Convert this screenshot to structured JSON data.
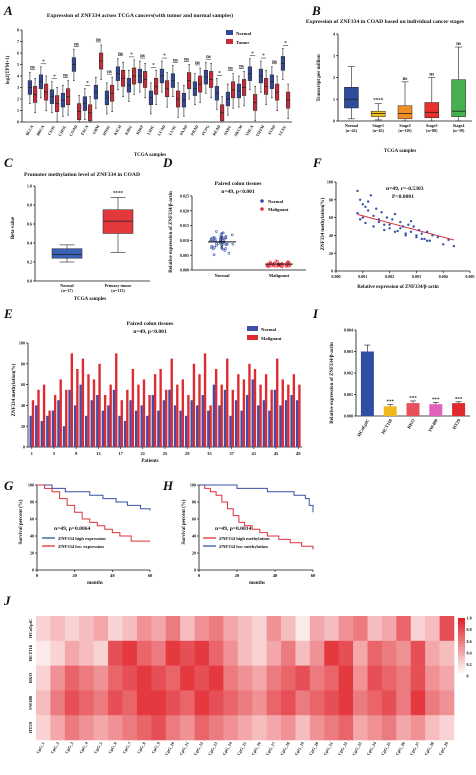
{
  "panels": {
    "A": {
      "letter": "A",
      "chart_data": {
        "type": "box",
        "title": "Expression of ZNF334 across TCGA cancers(with tumor and normal samples)",
        "xlabel": "TCGA samples",
        "ylabel": "log2(TPM+1)",
        "ylim": [
          0,
          8
        ],
        "yticks": [
          "0",
          "1",
          "2",
          "3",
          "4",
          "5",
          "6",
          "7",
          "8"
        ],
        "legend": [
          "Normal",
          "Tumor"
        ],
        "colors": {
          "normal": "#33489a",
          "tumor": "#c62d3a"
        },
        "categories": [
          "BLCA",
          "BRCA",
          "CESC",
          "CHOL",
          "COAD",
          "ESCA",
          "GBM",
          "HNSC",
          "KICH",
          "KIRC",
          "KIRP",
          "LIHC",
          "LUAD",
          "LUSC",
          "PAAD",
          "PRAD",
          "PCPG",
          "READ",
          "SARC",
          "SKCM",
          "THCA",
          "THYM",
          "STAD",
          "UCEC"
        ],
        "significance": [
          "ns",
          "*",
          "*",
          "ns",
          "ns",
          "*",
          "ns",
          "ns",
          "ns",
          "*",
          "ns",
          "*",
          "*",
          "ns",
          "ns",
          "ns",
          "ns",
          "*",
          "ns",
          "ns",
          "*",
          "*",
          "ns",
          "*"
        ],
        "series": [
          {
            "name": "Normal",
            "median": [
              3.0,
              3.5,
              2.2,
              1.9,
              5.0,
              1.6,
              2.6,
              2.1,
              4.2,
              3.2,
              4.0,
              2.1,
              4.0,
              3.6,
              1.9,
              2.9,
              3.9,
              2.5,
              2.0,
              2.7,
              4.2,
              4.0,
              3.5,
              5.1
            ]
          },
          {
            "name": "Tumor",
            "median": [
              2.4,
              2.6,
              1.6,
              2.2,
              0.9,
              0.8,
              5.3,
              2.5,
              3.8,
              4.0,
              3.7,
              3.1,
              2.9,
              2.0,
              3.6,
              3.3,
              3.7,
              0.8,
              2.8,
              3.0,
              1.7,
              3.1,
              2.6,
              1.9
            ]
          }
        ]
      }
    },
    "B": {
      "letter": "B",
      "chart_data": {
        "type": "box",
        "title": "Expression of ZNF334 in COAD based on individual cancer stages",
        "xlabel": "TCGA samples",
        "ylabel": "Transcript per million",
        "ylim": [
          0,
          4
        ],
        "yticks": [
          "0",
          "1",
          "2",
          "3",
          "4"
        ],
        "categories": [
          "Normal",
          "Stage1",
          "Stage2",
          "Stage3",
          "Stage4"
        ],
        "n_labels": [
          "(n=41)",
          "(n=45)",
          "(n=110)",
          "(n=80)",
          "(n=39)"
        ],
        "significance": [
          "",
          "****",
          "ns",
          "ns",
          "ns"
        ],
        "colors": [
          "#2e4b9c",
          "#f3bd20",
          "#f28c26",
          "#e8312c",
          "#44b14c"
        ],
        "median": [
          1.0,
          0.35,
          0.35,
          0.4,
          0.45
        ],
        "q1": [
          0.6,
          0.2,
          0.1,
          0.15,
          0.2
        ],
        "q3": [
          1.55,
          0.45,
          0.7,
          0.85,
          1.9
        ],
        "whisker_low": [
          0.1,
          0.05,
          0.0,
          0.0,
          0.0
        ],
        "whisker_high": [
          2.5,
          0.8,
          1.8,
          2.0,
          3.4
        ]
      }
    },
    "C": {
      "letter": "C",
      "chart_data": {
        "type": "box",
        "title": "Promoter methylation level of ZNF334 in COAD",
        "xlabel": "TCGA samples",
        "ylabel": "Beta value",
        "ylim": [
          0,
          1
        ],
        "yticks": [
          "0.0",
          "0.2",
          "0.4",
          "0.6",
          "0.8",
          "1.0"
        ],
        "categories": [
          "Normal",
          "Primary tumor"
        ],
        "n_labels": [
          "(n=37)",
          "(n=313)"
        ],
        "significance": "****",
        "colors": [
          "#3b61b4",
          "#e3383c"
        ],
        "median": [
          0.28,
          0.63
        ],
        "q1": [
          0.24,
          0.5
        ],
        "q3": [
          0.34,
          0.75
        ],
        "whisker_low": [
          0.2,
          0.3
        ],
        "whisker_high": [
          0.38,
          0.88
        ]
      }
    },
    "D": {
      "letter": "D",
      "chart_data": {
        "type": "scatter",
        "title": "Paired colon tissues",
        "subtitle": "n=49, p<0.001",
        "ylabel": "Relative expression of ZNF334/β-actin",
        "ylim": [
          0,
          0.025
        ],
        "yticks": [
          "0.000",
          "0.005",
          "0.010",
          "0.015",
          "0.020",
          "0.025"
        ],
        "categories": [
          "Normal",
          "Malignant"
        ],
        "legend": [
          "Normal",
          "Malignant"
        ],
        "colors": {
          "normal": "#2f4ea3",
          "malignant": "#e0303b"
        },
        "mean": [
          0.0095,
          0.002
        ],
        "sd": [
          0.002,
          0.0006
        ]
      }
    },
    "E": {
      "letter": "E",
      "chart_data": {
        "type": "bar",
        "title": "Paired colon tissues",
        "subtitle": "n=49, p<0.001",
        "xlabel": "Patients",
        "ylabel": "ZNF334 methylation(%)",
        "ylim": [
          0,
          100
        ],
        "yticks": [
          "0",
          "20",
          "40",
          "60",
          "80",
          "100"
        ],
        "xticks": [
          "1",
          "5",
          "9",
          "13",
          "17",
          "21",
          "25",
          "29",
          "33",
          "37",
          "41",
          "45",
          "49"
        ],
        "legend": [
          "Normal",
          "Malignant"
        ],
        "colors": {
          "normal": "#3f4fa8",
          "malignant": "#e02a32"
        },
        "series": [
          {
            "name": "Normal",
            "values": [
              30,
              40,
              25,
              30,
              35,
              45,
              20,
              55,
              40,
              60,
              30,
              45,
              50,
              35,
              40,
              55,
              30,
              25,
              45,
              35,
              40,
              30,
              50,
              35,
              45,
              55,
              40,
              35,
              30,
              45,
              40,
              50,
              35,
              60,
              40,
              55,
              30,
              45,
              35,
              50,
              65,
              40,
              45,
              35,
              55,
              40,
              45,
              50,
              45
            ]
          },
          {
            "name": "Malignant",
            "values": [
              45,
              55,
              60,
              35,
              50,
              65,
              55,
              90,
              75,
              85,
              70,
              65,
              80,
              50,
              60,
              90,
              45,
              55,
              75,
              60,
              65,
              50,
              70,
              75,
              55,
              85,
              60,
              65,
              50,
              80,
              70,
              90,
              40,
              75,
              60,
              85,
              55,
              70,
              65,
              80,
              75,
              60,
              70,
              55,
              85,
              65,
              60,
              70,
              60
            ]
          }
        ]
      }
    },
    "F": {
      "letter": "F",
      "chart_data": {
        "type": "scatter",
        "title": "n=49, r=-0.5303",
        "subtitle": "P<0.0001",
        "xlabel": "Relative expression of ZNF334/β-actin",
        "ylabel": "ZNF334 methylation(%)",
        "xlim": [
          0,
          0.005
        ],
        "ylim": [
          0,
          100
        ],
        "xticks": [
          "0.000",
          "0.001",
          "0.002",
          "0.003",
          "0.004",
          "0.005"
        ],
        "yticks": [
          "0",
          "20",
          "40",
          "60",
          "80",
          "100"
        ],
        "point_color": "#3751a6",
        "line_color": "#e0303b",
        "fit": {
          "slope": -8000,
          "intercept": 70
        },
        "x": [
          0.0008,
          0.0009,
          0.001,
          0.0011,
          0.0012,
          0.0013,
          0.0014,
          0.0015,
          0.0016,
          0.0017,
          0.0018,
          0.0019,
          0.002,
          0.0021,
          0.0022,
          0.0023,
          0.0024,
          0.0025,
          0.0026,
          0.0027,
          0.0028,
          0.0029,
          0.003,
          0.0031,
          0.0032,
          0.0033,
          0.0034,
          0.0035,
          0.0036,
          0.0038,
          0.004,
          0.0042,
          0.0044,
          0.0008,
          0.0009,
          0.001,
          0.0011,
          0.0012,
          0.0014,
          0.0016,
          0.0018,
          0.002,
          0.0022,
          0.0024,
          0.0026,
          0.0028,
          0.003,
          0.0032,
          0.0034
        ],
        "y": [
          90,
          80,
          75,
          72,
          68,
          85,
          62,
          70,
          55,
          66,
          52,
          60,
          48,
          58,
          64,
          45,
          55,
          50,
          40,
          52,
          44,
          50,
          38,
          46,
          42,
          36,
          44,
          34,
          40,
          38,
          30,
          35,
          28,
          65,
          58,
          60,
          54,
          78,
          50,
          58,
          46,
          52,
          44,
          48,
          42,
          56,
          40,
          36,
          34
        ]
      }
    },
    "G": {
      "letter": "G",
      "chart_data": {
        "type": "line",
        "subtitle": "n=49, p=0.0064",
        "xlabel": "months",
        "ylabel": "Survival percent (%)",
        "xlim": [
          0,
          60
        ],
        "ylim": [
          0,
          100
        ],
        "xticks": [
          "0",
          "20",
          "40",
          "60"
        ],
        "yticks": [
          "0",
          "20",
          "40",
          "60",
          "80",
          "100"
        ],
        "legend": [
          "ZNF334 high expression",
          "ZNF334 low expression"
        ],
        "colors": {
          "high": "#3751a6",
          "low": "#e0303b"
        },
        "series": [
          {
            "name": "ZNF334 high expression",
            "x": [
              0,
              8,
              15,
              22,
              28,
              35,
              42,
              48,
              55,
              60
            ],
            "y": [
              100,
              96,
              92,
              92,
              88,
              84,
              80,
              76,
              72,
              70
            ]
          },
          {
            "name": "ZNF334 low expression",
            "x": [
              0,
              4,
              8,
              12,
              16,
              20,
              24,
              28,
              32,
              36,
              40,
              44,
              50,
              60
            ],
            "y": [
              100,
              96,
              92,
              84,
              76,
              68,
              60,
              56,
              52,
              48,
              44,
              40,
              34,
              34
            ]
          }
        ]
      }
    },
    "H": {
      "letter": "H",
      "chart_data": {
        "type": "line",
        "subtitle": "n=49, p=0.0014",
        "xlabel": "months",
        "ylabel": "Survival percent (%)",
        "xlim": [
          0,
          60
        ],
        "ylim": [
          0,
          100
        ],
        "xticks": [
          "0",
          "20",
          "40",
          "60"
        ],
        "yticks": [
          "0",
          "20",
          "40",
          "60",
          "80",
          "100"
        ],
        "legend": [
          "ZNF334 high methylation",
          "ZNF334 low methylation"
        ],
        "colors": {
          "high": "#e0303b",
          "low": "#3751a6"
        },
        "series": [
          {
            "name": "ZNF334 high methylation",
            "x": [
              0,
              3,
              6,
              9,
              12,
              15,
              18,
              21,
              24,
              28,
              32,
              36,
              42,
              48,
              54,
              60
            ],
            "y": [
              100,
              96,
              92,
              88,
              80,
              72,
              64,
              56,
              52,
              48,
              44,
              40,
              36,
              32,
              28,
              24
            ]
          },
          {
            "name": "ZNF334 low methylation",
            "x": [
              0,
              10,
              20,
              28,
              36,
              44,
              50,
              56,
              58,
              60
            ],
            "y": [
              100,
              100,
              96,
              96,
              92,
              92,
              88,
              84,
              76,
              68
            ]
          }
        ]
      }
    },
    "I": {
      "letter": "I",
      "chart_data": {
        "type": "bar",
        "ylabel": "Relative expression of ZNF334/β-actin",
        "ylim": [
          0,
          0.004
        ],
        "yticks": [
          "0.000",
          "0.001",
          "0.002",
          "0.003",
          "0.004"
        ],
        "categories": [
          "HCoEpiC",
          "HCT116",
          "RKO",
          "SW480",
          "HT29"
        ],
        "values": [
          0.003,
          0.00045,
          0.0006,
          0.00055,
          0.0006
        ],
        "errors": [
          0.0003,
          8e-05,
          0.0001,
          8e-05,
          6e-05
        ],
        "significance": [
          "",
          "***",
          "***",
          "***",
          "***"
        ],
        "colors": [
          "#2f4ea3",
          "#f2b91f",
          "#e8505b",
          "#e063b9",
          "#e02a2e"
        ]
      }
    },
    "J": {
      "letter": "J",
      "chart_data": {
        "type": "heatmap",
        "rows": [
          "HCoEpiC",
          "HCT116",
          "RKO",
          "SW480",
          "HT29"
        ],
        "columns": [
          "CpG_1",
          "CpG_2",
          "CpG_3",
          "CpG_4",
          "CpG_5",
          "CpG_6",
          "CpG_7",
          "CpG_8",
          "CpG_9",
          "CpG_10",
          "CpG_11",
          "CpG_12",
          "CpG_13",
          "CpG_14",
          "CpG_15",
          "CpG_16",
          "CpG_17",
          "CpG_18",
          "CpG_19",
          "CpG_20",
          "CpG_21",
          "CpG_22",
          "CpG_23",
          "CpG_24",
          "CpG_25",
          "CpG_26",
          "CpG_27",
          "CpG_28",
          "CpG_29"
        ],
        "scale_ticks": [
          "1.0",
          "0.8",
          "0.6",
          "0.4",
          "0.2",
          "0"
        ],
        "color_low": "#ffffff",
        "color_high": "#e0232a",
        "values": [
          [
            0.2,
            0.3,
            0.2,
            0.3,
            0.4,
            0.2,
            0.3,
            0.5,
            0.4,
            0.6,
            0.3,
            0.5,
            0.6,
            0.4,
            0.3,
            0.2,
            0.5,
            0.3,
            0.1,
            0.4,
            0.3,
            0.5,
            0.6,
            0.3,
            0.4,
            0.7,
            0.2,
            0.3,
            0.8
          ],
          [
            0.1,
            0.2,
            0.4,
            0.3,
            0.2,
            0.8,
            0.9,
            0.7,
            0.6,
            0.9,
            0.8,
            0.9,
            0.7,
            0.5,
            0.3,
            0.2,
            0.4,
            0.6,
            0.3,
            0.5,
            0.9,
            0.8,
            0.4,
            0.7,
            0.6,
            0.5,
            0.8,
            0.4,
            0.3
          ],
          [
            0.2,
            0.5,
            0.7,
            0.6,
            0.5,
            0.7,
            0.8,
            0.9,
            0.8,
            0.7,
            0.9,
            0.8,
            0.9,
            0.6,
            0.5,
            0.4,
            0.6,
            0.7,
            0.8,
            0.6,
            0.7,
            0.9,
            0.5,
            0.8,
            0.7,
            0.6,
            0.8,
            0.5,
            0.4
          ],
          [
            0.3,
            0.6,
            0.8,
            0.7,
            0.6,
            0.8,
            0.7,
            0.9,
            0.9,
            0.8,
            0.7,
            0.9,
            0.8,
            0.7,
            0.6,
            0.5,
            0.7,
            0.8,
            0.6,
            0.7,
            0.8,
            0.9,
            0.6,
            0.7,
            0.8,
            0.6,
            0.9,
            0.6,
            0.5
          ],
          [
            0.2,
            0.4,
            0.6,
            0.5,
            0.4,
            0.5,
            0.6,
            0.7,
            0.8,
            0.6,
            0.5,
            0.7,
            0.6,
            0.5,
            0.4,
            0.3,
            0.4,
            0.5,
            0.3,
            0.5,
            0.6,
            0.7,
            0.4,
            0.5,
            0.6,
            0.4,
            0.5,
            0.3,
            0.2
          ]
        ]
      }
    }
  }
}
